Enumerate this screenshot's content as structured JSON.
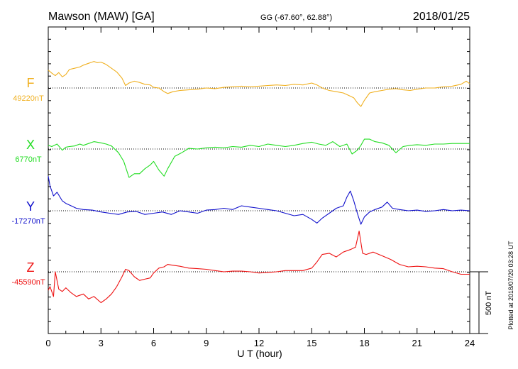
{
  "header": {
    "station": "Mawson (MAW)  [GA]",
    "coords": "GG (-67.60°,  62.88°)",
    "date": "2018/01/25"
  },
  "plotted_note": "Plotted at 2018/07/20 03:28 UT",
  "scale_bar_label": "500 nT",
  "chart_data": {
    "type": "line",
    "xlabel": "U T (hour)",
    "xlim": [
      0,
      24
    ],
    "xticks": [
      0,
      3,
      6,
      9,
      12,
      15,
      18,
      21,
      24
    ],
    "scale_bar_nT": 500,
    "series": [
      {
        "name": "F",
        "baseline_label": "49220nT",
        "baseline_nT": 49220,
        "color": "#f0b020",
        "x": [
          0,
          0.2,
          0.4,
          0.6,
          0.8,
          1.0,
          1.2,
          1.5,
          1.8,
          2.0,
          2.3,
          2.6,
          2.8,
          3.0,
          3.3,
          3.6,
          3.9,
          4.2,
          4.4,
          4.6,
          4.9,
          5.2,
          5.5,
          5.8,
          6.0,
          6.3,
          6.6,
          6.8,
          7.1,
          7.5,
          8.0,
          8.5,
          9.0,
          9.5,
          10.0,
          10.5,
          11.0,
          11.5,
          12.0,
          12.5,
          13.0,
          13.5,
          14.0,
          14.5,
          15.0,
          15.3,
          15.6,
          16.0,
          16.4,
          16.8,
          17.1,
          17.4,
          17.6,
          17.8,
          18.0,
          18.3,
          18.6,
          19.0,
          19.4,
          19.8,
          20.2,
          20.6,
          21.0,
          21.5,
          22.0,
          22.5,
          23.0,
          23.5,
          23.8,
          24.0
        ],
        "y": [
          145,
          120,
          100,
          125,
          90,
          110,
          150,
          160,
          170,
          185,
          200,
          215,
          205,
          210,
          190,
          160,
          130,
          80,
          20,
          40,
          55,
          45,
          30,
          25,
          5,
          0,
          -30,
          -45,
          -30,
          -20,
          -15,
          -10,
          0,
          -5,
          5,
          10,
          15,
          10,
          15,
          20,
          25,
          20,
          30,
          25,
          40,
          25,
          0,
          -20,
          -30,
          -40,
          -60,
          -80,
          -120,
          -150,
          -100,
          -40,
          -30,
          -20,
          -10,
          -5,
          -15,
          -20,
          -10,
          0,
          0,
          10,
          15,
          30,
          55,
          35
        ]
      },
      {
        "name": "X",
        "baseline_label": "6770nT",
        "baseline_nT": 6770,
        "color": "#22dd22",
        "x": [
          0,
          0.2,
          0.5,
          0.8,
          1.0,
          1.2,
          1.5,
          1.8,
          2.0,
          2.3,
          2.6,
          3.0,
          3.3,
          3.6,
          4.0,
          4.3,
          4.6,
          4.9,
          5.2,
          5.5,
          5.8,
          6.0,
          6.3,
          6.6,
          6.8,
          7.2,
          7.6,
          8.0,
          8.5,
          9.0,
          9.5,
          10.0,
          10.5,
          11.0,
          11.5,
          12.0,
          12.5,
          13.0,
          13.5,
          14.0,
          14.5,
          15.0,
          15.4,
          15.8,
          16.2,
          16.6,
          17.0,
          17.3,
          17.6,
          17.8,
          18.0,
          18.3,
          18.6,
          19.0,
          19.4,
          19.8,
          20.2,
          20.6,
          21.0,
          21.5,
          22.0,
          22.5,
          23.0,
          23.5,
          24.0
        ],
        "y": [
          30,
          20,
          40,
          -10,
          15,
          20,
          25,
          40,
          30,
          45,
          60,
          50,
          40,
          25,
          -30,
          -100,
          -230,
          -200,
          -200,
          -160,
          -130,
          -100,
          -170,
          -220,
          -160,
          -60,
          -30,
          5,
          0,
          10,
          15,
          10,
          20,
          15,
          30,
          20,
          40,
          30,
          20,
          30,
          45,
          55,
          40,
          30,
          60,
          20,
          40,
          -40,
          -10,
          30,
          80,
          80,
          60,
          50,
          30,
          -30,
          20,
          30,
          35,
          30,
          40,
          40,
          45,
          45,
          45
        ]
      },
      {
        "name": "Y",
        "baseline_label": "-17270nT",
        "baseline_nT": -17270,
        "color": "#1010cc",
        "x": [
          0,
          0.1,
          0.3,
          0.5,
          0.8,
          1.0,
          1.3,
          1.6,
          2.0,
          2.5,
          3.0,
          3.5,
          4.0,
          4.5,
          5.0,
          5.5,
          6.0,
          6.5,
          7.0,
          7.5,
          8.0,
          8.5,
          9.0,
          9.5,
          10.0,
          10.5,
          11.0,
          11.5,
          12.0,
          12.5,
          13.0,
          13.5,
          14.0,
          14.5,
          15.0,
          15.3,
          15.6,
          16.0,
          16.4,
          16.8,
          17.0,
          17.2,
          17.4,
          17.6,
          17.8,
          18.0,
          18.3,
          18.6,
          19.0,
          19.3,
          19.6,
          20.0,
          20.5,
          21.0,
          21.5,
          22.0,
          22.5,
          23.0,
          23.5,
          24.0
        ],
        "y": [
          280,
          200,
          120,
          150,
          80,
          60,
          40,
          20,
          10,
          5,
          -10,
          -20,
          -30,
          -10,
          -5,
          -30,
          -20,
          -10,
          -30,
          0,
          -10,
          -20,
          5,
          10,
          20,
          10,
          40,
          30,
          20,
          10,
          0,
          -20,
          -40,
          -30,
          -70,
          -100,
          -60,
          -20,
          20,
          40,
          110,
          160,
          80,
          -20,
          -110,
          -50,
          -10,
          10,
          30,
          70,
          20,
          10,
          0,
          5,
          -5,
          0,
          10,
          0,
          5,
          0
        ]
      },
      {
        "name": "Z",
        "baseline_label": "-45590nT",
        "baseline_nT": -45590,
        "color": "#ee1111",
        "x": [
          0,
          0.1,
          0.3,
          0.4,
          0.6,
          0.8,
          1.0,
          1.3,
          1.6,
          2.0,
          2.3,
          2.6,
          3.0,
          3.3,
          3.6,
          3.9,
          4.2,
          4.4,
          4.6,
          4.9,
          5.2,
          5.5,
          5.8,
          6.0,
          6.3,
          6.6,
          6.8,
          7.0,
          7.5,
          8.0,
          8.5,
          9.0,
          9.5,
          10.0,
          10.5,
          11.0,
          11.5,
          12.0,
          12.5,
          13.0,
          13.5,
          14.0,
          14.5,
          15.0,
          15.3,
          15.6,
          16.0,
          16.4,
          16.8,
          17.2,
          17.5,
          17.7,
          17.9,
          18.1,
          18.5,
          19.0,
          19.5,
          20.0,
          20.5,
          21.0,
          21.5,
          22.0,
          22.5,
          23.0,
          23.5,
          24.0
        ],
        "y": [
          -150,
          -120,
          -200,
          0,
          -140,
          -160,
          -130,
          -170,
          -200,
          -180,
          -220,
          -200,
          -250,
          -220,
          -180,
          -120,
          -40,
          20,
          10,
          -40,
          -70,
          -60,
          -50,
          -10,
          30,
          40,
          60,
          55,
          45,
          30,
          25,
          20,
          10,
          0,
          5,
          5,
          0,
          -10,
          -5,
          0,
          10,
          10,
          10,
          30,
          80,
          140,
          150,
          120,
          160,
          180,
          200,
          330,
          150,
          140,
          160,
          130,
          100,
          60,
          40,
          45,
          40,
          30,
          25,
          0,
          -20,
          -20
        ]
      }
    ]
  }
}
